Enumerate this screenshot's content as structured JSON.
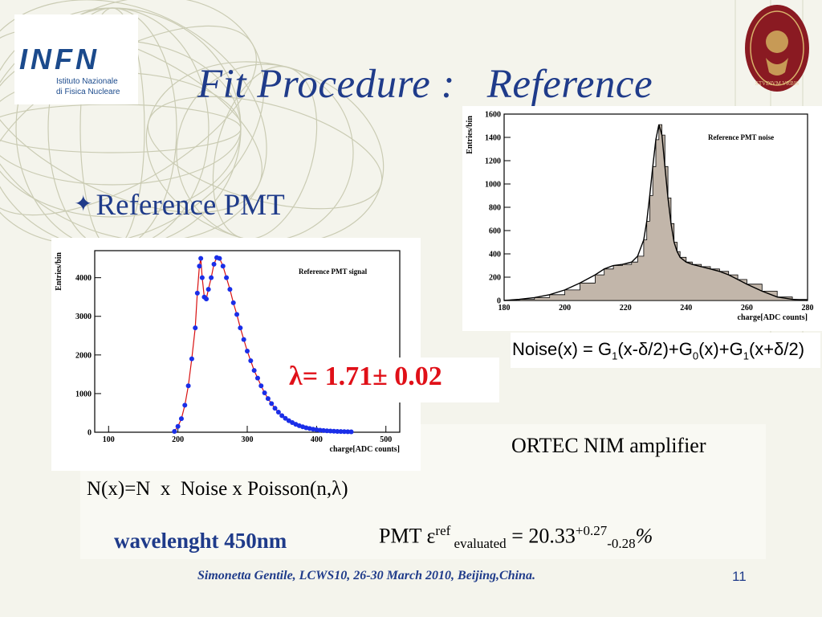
{
  "slide": {
    "title": "Fit Procedure :   Reference",
    "bullet": "Reference PMT",
    "lambda": "λ= 1.71± 0.02",
    "noise_formula": {
      "prefix": "Noise(x) = G",
      "s1": "1",
      "p1": "(x-δ/2)+G",
      "s2": "0",
      "p2": "(x)+G",
      "s3": "1",
      "p3": "(x+δ/2)"
    },
    "amplifier": "ORTEC NIM amplifier",
    "convolution": "N(x)=N  x  Noise x Poisson(n,λ)",
    "wavelength": "wavelenght 450nm",
    "efficiency": {
      "prefix": "PMT  ε",
      "sup_ref": "ref",
      "sub_eval": " evaluated",
      "eq": " = 20.33",
      "sup_err": "+0.27",
      "sub_err": "-0.28",
      "unit": "%"
    },
    "footer": "Simonetta Gentile,  LCWS10, 26-30 March 2010, Beijing,China.",
    "page_number": "11"
  },
  "logos": {
    "infn": {
      "wordmark": "INFN",
      "line1": "Istituto Nazionale",
      "line2": "di Fisica Nucleare"
    },
    "sapienza": {
      "motto": "STVDIVM VRBIS"
    }
  },
  "colors": {
    "title": "#1f3b8a",
    "lambda": "#e01018",
    "signal_points": "#1a2ee8",
    "fit_line": "#d81010",
    "noise_fill": "#c2b6aa",
    "infn_blue": "#1b4a8c",
    "sapienza_red": "#8a1a22"
  },
  "chart_data": [
    {
      "type": "scatter",
      "title": "Reference PMT signal",
      "xlabel": "charge[ADC counts]",
      "ylabel": "Entries/bin",
      "xlim": [
        80,
        520
      ],
      "ylim": [
        0,
        4700
      ],
      "xticks": [
        100,
        200,
        300,
        400,
        500
      ],
      "yticks": [
        0,
        1000,
        2000,
        3000,
        4000
      ],
      "grid": false,
      "series": [
        {
          "x": [
            195,
            200,
            205,
            210,
            215,
            220,
            225,
            228,
            231,
            233,
            235,
            238,
            241,
            244,
            248,
            252,
            256,
            260,
            265,
            270,
            275,
            280,
            285,
            290,
            295,
            300,
            305,
            310,
            315,
            320,
            325,
            330,
            335,
            340,
            345,
            350,
            355,
            360,
            365,
            370,
            375,
            380,
            385,
            390,
            395,
            400,
            405,
            410,
            415,
            420,
            425,
            430,
            435,
            440,
            445,
            450
          ],
          "y": [
            20,
            150,
            350,
            700,
            1200,
            1900,
            2700,
            3600,
            4300,
            4500,
            4000,
            3500,
            3450,
            3700,
            4000,
            4350,
            4520,
            4500,
            4300,
            4000,
            3700,
            3350,
            3050,
            2700,
            2400,
            2100,
            1850,
            1600,
            1400,
            1200,
            1020,
            870,
            740,
            620,
            520,
            430,
            360,
            300,
            250,
            205,
            170,
            140,
            115,
            95,
            78,
            64,
            53,
            44,
            37,
            31,
            26,
            22,
            19,
            16,
            13,
            10
          ]
        }
      ]
    },
    {
      "type": "area",
      "title": "Reference PMT noise",
      "xlabel": "charge[ADC counts]",
      "ylabel": "Entries/bin",
      "xlim": [
        180,
        280
      ],
      "ylim": [
        0,
        1600
      ],
      "xticks": [
        180,
        200,
        220,
        240,
        260,
        280
      ],
      "yticks": [
        0,
        200,
        400,
        600,
        800,
        1000,
        1200,
        1400,
        1600
      ],
      "grid": false,
      "series": [
        {
          "x": [
            180,
            185,
            190,
            195,
            200,
            205,
            210,
            213,
            216,
            219,
            222,
            224,
            226,
            227,
            228,
            229,
            230,
            231,
            232,
            233,
            234,
            235,
            236,
            237,
            238,
            240,
            242,
            245,
            248,
            251,
            254,
            257,
            260,
            265,
            270,
            275,
            280
          ],
          "y": [
            0,
            10,
            25,
            50,
            90,
            150,
            220,
            270,
            300,
            310,
            330,
            380,
            520,
            680,
            900,
            1150,
            1380,
            1510,
            1420,
            1150,
            880,
            660,
            500,
            420,
            370,
            330,
            310,
            290,
            270,
            250,
            220,
            180,
            140,
            80,
            30,
            10,
            0
          ]
        }
      ]
    }
  ]
}
